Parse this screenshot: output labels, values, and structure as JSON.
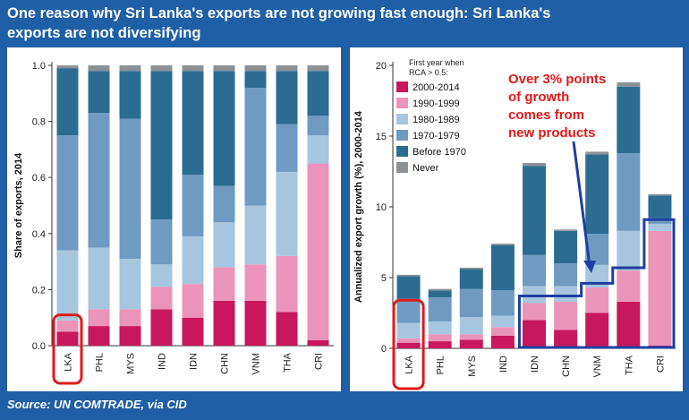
{
  "title_line1": "One reason why Sri Lanka's exports are not growing fast enough: Sri Lanka's",
  "title_line2": "exports are not diversifying",
  "source": "Source: UN COMTRADE, via CID",
  "legend": {
    "title_line1": "First year when",
    "title_line2": "RCA > 0.5:",
    "items": [
      {
        "label": "2000-2014",
        "color": "#c8175d"
      },
      {
        "label": "1990-1999",
        "color": "#eb94b9"
      },
      {
        "label": "1980-1989",
        "color": "#a6c6df"
      },
      {
        "label": "1970-1979",
        "color": "#6f9bc2"
      },
      {
        "label": "Before 1970",
        "color": "#2c6c93"
      },
      {
        "label": "Never",
        "color": "#8d9195"
      }
    ]
  },
  "annotation": {
    "lines": [
      "Over 3% points",
      "of growth",
      "comes from",
      "new products"
    ],
    "color": "#e01a1a"
  },
  "chart_data": [
    {
      "type": "bar",
      "stacked": true,
      "categories": [
        "LKA",
        "PHL",
        "MYS",
        "IND",
        "IDN",
        "CHN",
        "VNM",
        "THA",
        "CRI"
      ],
      "ylabel": "Share of exports, 2014",
      "ylim": [
        0,
        1.0
      ],
      "yticks": [
        "0.0",
        "0.2",
        "0.4",
        "0.6",
        "0.8",
        "1.0"
      ],
      "highlight_category": "LKA",
      "series": [
        {
          "name": "2000-2014",
          "values": [
            0.05,
            0.07,
            0.07,
            0.13,
            0.1,
            0.16,
            0.16,
            0.12,
            0.02
          ]
        },
        {
          "name": "1990-1999",
          "values": [
            0.04,
            0.06,
            0.06,
            0.08,
            0.12,
            0.12,
            0.13,
            0.2,
            0.63
          ]
        },
        {
          "name": "1980-1989",
          "values": [
            0.25,
            0.22,
            0.18,
            0.08,
            0.17,
            0.16,
            0.21,
            0.3,
            0.1
          ]
        },
        {
          "name": "1970-1979",
          "values": [
            0.41,
            0.48,
            0.5,
            0.16,
            0.22,
            0.13,
            0.42,
            0.17,
            0.07
          ]
        },
        {
          "name": "Before 1970",
          "values": [
            0.24,
            0.15,
            0.17,
            0.53,
            0.37,
            0.41,
            0.06,
            0.19,
            0.16
          ]
        },
        {
          "name": "Never",
          "values": [
            0.01,
            0.02,
            0.02,
            0.02,
            0.02,
            0.02,
            0.02,
            0.02,
            0.02
          ]
        }
      ]
    },
    {
      "type": "bar",
      "stacked": true,
      "categories": [
        "LKA",
        "PHL",
        "MYS",
        "IND",
        "IDN",
        "CHN",
        "VNM",
        "THA",
        "CRI"
      ],
      "ylabel": "Annualized export growth (%), 2000-2014",
      "ylim": [
        0,
        20
      ],
      "yticks": [
        "0",
        "5",
        "10",
        "15",
        "20"
      ],
      "highlight_category": "LKA",
      "highlight_group": [
        "IDN",
        "CHN",
        "VNM",
        "THA",
        "CRI"
      ],
      "series": [
        {
          "name": "2000-2014",
          "values": [
            0.4,
            0.5,
            0.6,
            0.9,
            2.0,
            1.3,
            2.5,
            3.3,
            0.2
          ]
        },
        {
          "name": "1990-1999",
          "values": [
            0.3,
            0.5,
            0.4,
            0.6,
            1.2,
            2.0,
            1.8,
            2.2,
            8.1
          ]
        },
        {
          "name": "1980-1989",
          "values": [
            1.1,
            0.9,
            1.2,
            0.8,
            1.2,
            1.1,
            1.6,
            2.8,
            0.5
          ]
        },
        {
          "name": "1970-1979",
          "values": [
            1.7,
            1.7,
            2.0,
            1.8,
            2.2,
            1.6,
            2.2,
            5.5,
            0.4
          ]
        },
        {
          "name": "Before 1970",
          "values": [
            1.6,
            0.5,
            1.4,
            3.2,
            6.3,
            2.3,
            5.6,
            4.7,
            1.6
          ]
        },
        {
          "name": "Never",
          "values": [
            0.1,
            0.1,
            0.1,
            0.1,
            0.2,
            0.1,
            0.2,
            0.3,
            0.1
          ]
        }
      ]
    }
  ]
}
